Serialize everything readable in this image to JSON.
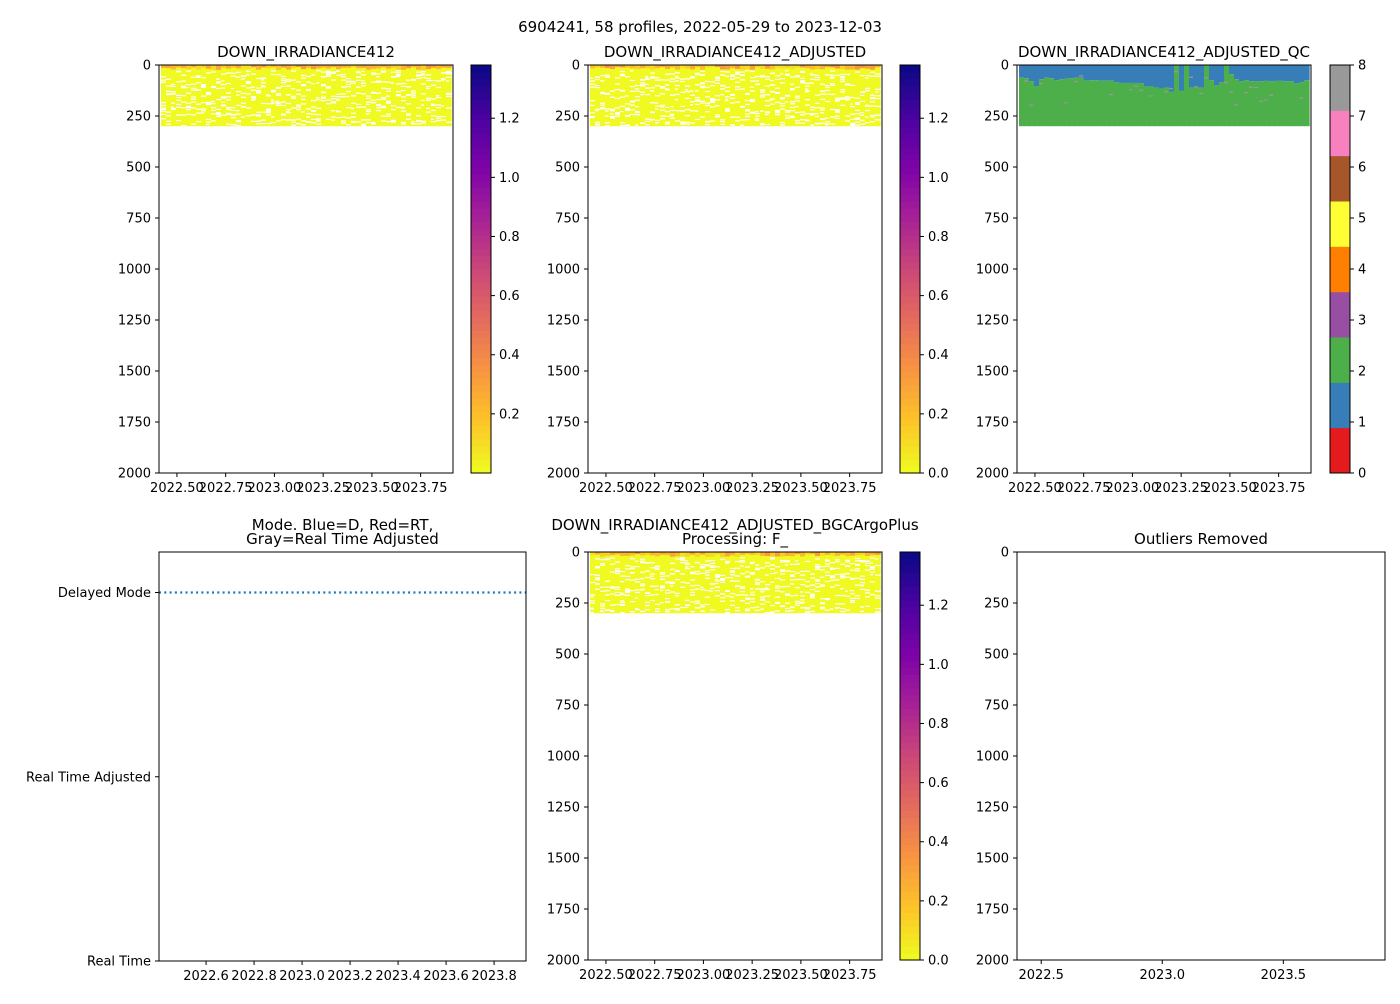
{
  "figure": {
    "suptitle": "6904241, 58 profiles, 2022-05-29 to 2023-12-03"
  },
  "colors": {
    "plasma_r": [
      "#f0f921",
      "#fdc328",
      "#f89441",
      "#e56b5d",
      "#cb4778",
      "#a82296",
      "#7e03a8",
      "#4c02a1",
      "#0d0887"
    ],
    "qc": [
      "#e41a1c",
      "#377eb8",
      "#4daf4a",
      "#984ea3",
      "#ff7f00",
      "#ffff33",
      "#a65628",
      "#f781bf",
      "#999999"
    ],
    "mode_line": "#1f77b4"
  },
  "chart_data": [
    {
      "type": "heatmap",
      "id": "raw",
      "title": "DOWN_IRRADIANCE412",
      "xlim": [
        2022.408,
        2023.916
      ],
      "ylim": [
        2000,
        0
      ],
      "xticks": {
        "values": [
          2022.5,
          2022.75,
          2023.0,
          2023.25,
          2023.5,
          2023.75
        ],
        "labels": [
          "2022.50",
          "2022.75",
          "2023.00",
          "2023.25",
          "2023.50",
          "2023.75"
        ]
      },
      "yticks": {
        "values": [
          0,
          250,
          500,
          750,
          1000,
          1250,
          1500,
          1750,
          2000
        ],
        "labels": [
          "0",
          "250",
          "500",
          "750",
          "1000",
          "1250",
          "1500",
          "1750",
          "2000"
        ]
      },
      "profiles": 58,
      "max_depth": 300,
      "colorbar": {
        "range": [
          0,
          1.38
        ],
        "ticks": [
          0.2,
          0.4,
          0.6,
          0.8,
          1.0,
          1.2
        ],
        "labels": [
          "0.2",
          "0.4",
          "0.6",
          "0.8",
          "1.0",
          "1.2"
        ]
      }
    },
    {
      "type": "heatmap",
      "id": "adjusted",
      "title": "DOWN_IRRADIANCE412_ADJUSTED",
      "xlim": [
        2022.408,
        2023.916
      ],
      "ylim": [
        2000,
        0
      ],
      "xticks": {
        "values": [
          2022.5,
          2022.75,
          2023.0,
          2023.25,
          2023.5,
          2023.75
        ],
        "labels": [
          "2022.50",
          "2022.75",
          "2023.00",
          "2023.25",
          "2023.50",
          "2023.75"
        ]
      },
      "yticks": {
        "values": [
          0,
          250,
          500,
          750,
          1000,
          1250,
          1500,
          1750,
          2000
        ],
        "labels": [
          "0",
          "250",
          "500",
          "750",
          "1000",
          "1250",
          "1500",
          "1750",
          "2000"
        ]
      },
      "profiles": 58,
      "max_depth": 300,
      "colorbar": {
        "range": [
          0,
          1.38
        ],
        "ticks": [
          0,
          0.2,
          0.4,
          0.6,
          0.8,
          1.0,
          1.2
        ],
        "labels": [
          "0.0",
          "0.2",
          "0.4",
          "0.6",
          "0.8",
          "1.0",
          "1.2"
        ]
      }
    },
    {
      "type": "heatmap",
      "id": "qc",
      "title": "DOWN_IRRADIANCE412_ADJUSTED_QC",
      "xlim": [
        2022.408,
        2023.916
      ],
      "ylim": [
        2000,
        0
      ],
      "xticks": {
        "values": [
          2022.5,
          2022.75,
          2023.0,
          2023.25,
          2023.5,
          2023.75
        ],
        "labels": [
          "2022.50",
          "2022.75",
          "2023.00",
          "2023.25",
          "2023.50",
          "2023.75"
        ]
      },
      "yticks": {
        "values": [
          0,
          250,
          500,
          750,
          1000,
          1250,
          1500,
          1750,
          2000
        ],
        "labels": [
          "0",
          "250",
          "500",
          "750",
          "1000",
          "1250",
          "1500",
          "1750",
          "2000"
        ]
      },
      "profiles": 58,
      "max_depth": 300,
      "qc1_to_qc2_depth": [
        62,
        65,
        80,
        103,
        70,
        62,
        65,
        75,
        70,
        67,
        65,
        62,
        63,
        77,
        75,
        75,
        77,
        77,
        77,
        85,
        88,
        88,
        88,
        88,
        90,
        105,
        105,
        110,
        115,
        110,
        130,
        0,
        125,
        0,
        110,
        110,
        110,
        0,
        75,
        100,
        85,
        0,
        45,
        70,
        80,
        75,
        80,
        80,
        80,
        78,
        80,
        78,
        78,
        80,
        80,
        90,
        85,
        75
      ],
      "colorbar": {
        "range": [
          0,
          8
        ],
        "ticks": [
          0,
          1,
          2,
          3,
          4,
          5,
          6,
          7,
          8
        ],
        "labels": [
          "0",
          "1",
          "2",
          "3",
          "4",
          "5",
          "6",
          "7",
          "8"
        ]
      }
    },
    {
      "type": "line",
      "id": "mode",
      "title": "Mode. Blue=D, Red=RT,",
      "title2": "Gray=Real Time Adjusted",
      "xlim": [
        2022.404,
        2023.933
      ],
      "xticks": {
        "values": [
          2022.6,
          2022.8,
          2023.0,
          2023.2,
          2023.4,
          2023.6,
          2023.8
        ],
        "labels": [
          "2022.6",
          "2022.8",
          "2023.0",
          "2023.2",
          "2023.4",
          "2023.6",
          "2023.8"
        ]
      },
      "yticks": {
        "values": [
          2,
          1,
          0
        ],
        "labels": [
          "Delayed Mode",
          "Real Time Adjusted",
          "Real Time"
        ]
      },
      "ylim": [
        0,
        2.22
      ],
      "series": [
        {
          "name": "Delayed Mode",
          "x": [
            2022.404,
            2023.933
          ],
          "y": [
            2,
            2
          ],
          "style": "dotted"
        }
      ]
    },
    {
      "type": "heatmap",
      "id": "bgc",
      "title": "DOWN_IRRADIANCE412_ADJUSTED_BGCArgoPlus",
      "title2": "Processing: F_",
      "xlim": [
        2022.408,
        2023.916
      ],
      "ylim": [
        2000,
        0
      ],
      "xticks": {
        "values": [
          2022.5,
          2022.75,
          2023.0,
          2023.25,
          2023.5,
          2023.75
        ],
        "labels": [
          "2022.50",
          "2022.75",
          "2023.00",
          "2023.25",
          "2023.50",
          "2023.75"
        ]
      },
      "yticks": {
        "values": [
          0,
          250,
          500,
          750,
          1000,
          1250,
          1500,
          1750,
          2000
        ],
        "labels": [
          "0",
          "250",
          "500",
          "750",
          "1000",
          "1250",
          "1500",
          "1750",
          "2000"
        ]
      },
      "profiles": 58,
      "max_depth": 300,
      "colorbar": {
        "range": [
          0,
          1.38
        ],
        "ticks": [
          0,
          0.2,
          0.4,
          0.6,
          0.8,
          1.0,
          1.2
        ],
        "labels": [
          "0.0",
          "0.2",
          "0.4",
          "0.6",
          "0.8",
          "1.0",
          "1.2"
        ]
      }
    },
    {
      "type": "scatter",
      "id": "outliers",
      "title": "Outliers Removed",
      "xlim": [
        2022.4,
        2023.92
      ],
      "ylim": [
        2000,
        0
      ],
      "xticks": {
        "values": [
          2022.5,
          2023.0,
          2023.5
        ],
        "labels": [
          "2022.5",
          "2023.0",
          "2023.5"
        ]
      },
      "yticks": {
        "values": [
          0,
          250,
          500,
          750,
          1000,
          1250,
          1500,
          1750,
          2000
        ],
        "labels": [
          "0",
          "250",
          "500",
          "750",
          "1000",
          "1250",
          "1500",
          "1750",
          "2000"
        ]
      },
      "points": []
    }
  ]
}
